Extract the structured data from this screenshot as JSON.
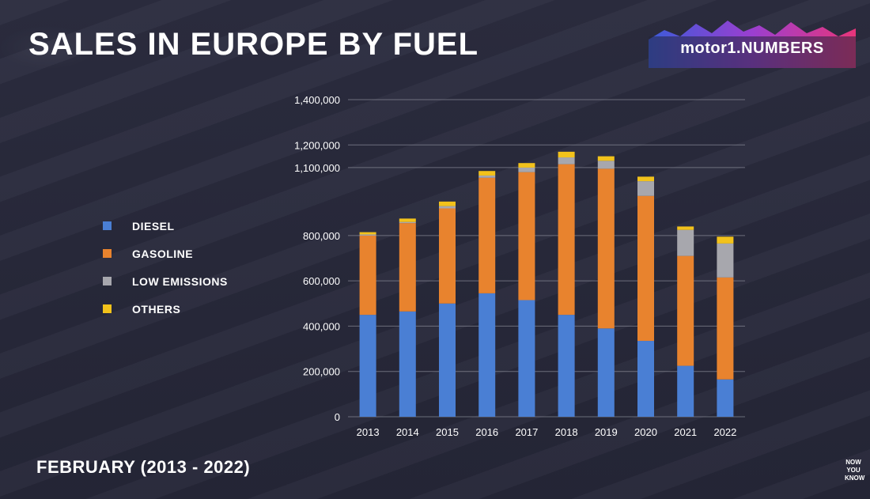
{
  "header": {
    "title": "SALES IN EUROPE BY FUEL",
    "subtitle": "FEBRUARY (2013 - 2022)"
  },
  "logo": {
    "text": "motor1.NUMBERS"
  },
  "watermark": {
    "line1": "NOW",
    "line2": "YOU",
    "line3": "KNOW"
  },
  "colors": {
    "diesel": "#4a7fd4",
    "gasoline": "#e8832e",
    "low_emissions": "#a7a7ad",
    "others": "#f2c21b",
    "grid": "#8a8b98"
  },
  "chart_data": {
    "type": "bar",
    "stacked": true,
    "title": "SALES IN EUROPE BY FUEL",
    "subtitle": "FEBRUARY (2013 - 2022)",
    "xlabel": "",
    "ylabel": "",
    "ylim": [
      0,
      1400000
    ],
    "yticks": [
      0,
      200000,
      400000,
      600000,
      800000,
      1100000,
      1200000,
      1400000
    ],
    "ytick_labels": [
      "0",
      "200,000",
      "400,000",
      "600,000",
      "800,000",
      "1,100,000",
      "1,200,000",
      "1,400,000"
    ],
    "grid": true,
    "legend": "left",
    "categories": [
      "2013",
      "2014",
      "2015",
      "2016",
      "2017",
      "2018",
      "2019",
      "2020",
      "2021",
      "2022"
    ],
    "series": [
      {
        "name": "DIESEL",
        "color_key": "diesel",
        "values": [
          450000,
          465000,
          500000,
          545000,
          515000,
          450000,
          390000,
          335000,
          225000,
          165000
        ]
      },
      {
        "name": "GASOLINE",
        "color_key": "gasoline",
        "values": [
          350000,
          390000,
          420000,
          510000,
          565000,
          665000,
          705000,
          640000,
          485000,
          450000
        ]
      },
      {
        "name": "LOW EMISSIONS",
        "color_key": "low_emissions",
        "values": [
          5000,
          5000,
          10000,
          10000,
          20000,
          30000,
          35000,
          65000,
          115000,
          150000
        ]
      },
      {
        "name": "OTHERS",
        "color_key": "others",
        "values": [
          10000,
          15000,
          20000,
          20000,
          20000,
          25000,
          20000,
          20000,
          15000,
          30000
        ]
      }
    ]
  }
}
